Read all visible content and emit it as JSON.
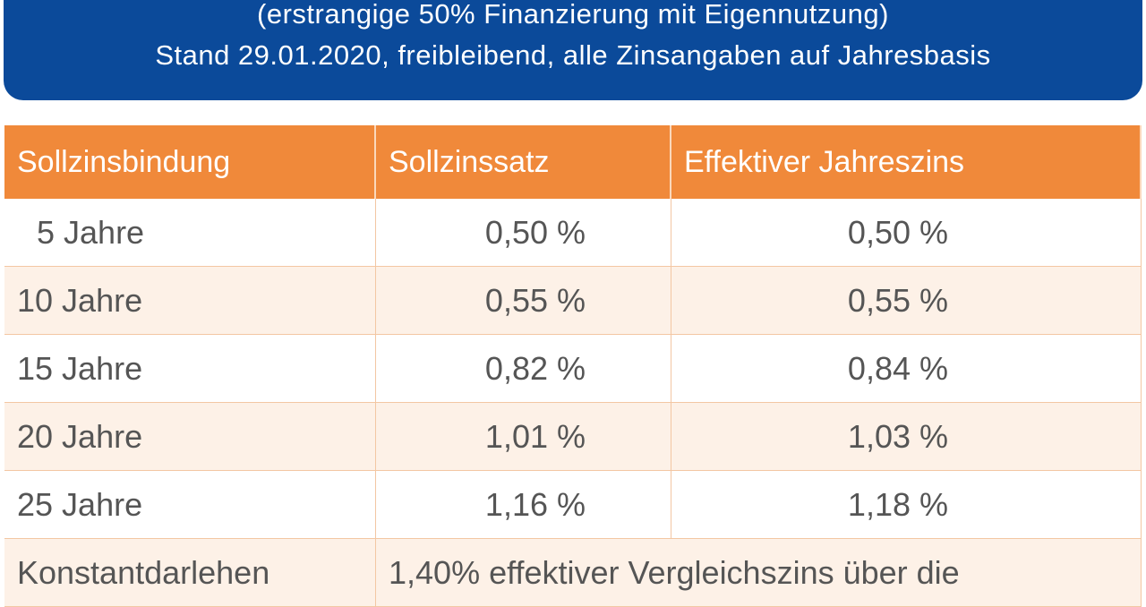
{
  "header": {
    "lines": [
      "(erstrangige 50% Finanzierung mit Eigennutzung)",
      "Stand 29.01.2020, freibleibend, alle Zinsangaben auf Jahresbasis"
    ]
  },
  "table": {
    "columns": [
      "Sollzinsbindung",
      "Sollzinssatz",
      "Effektiver Jahreszins"
    ],
    "rows": [
      [
        "5 Jahre",
        "0,50 %",
        "0,50 %"
      ],
      [
        "10 Jahre",
        "0,55 %",
        "0,55 %"
      ],
      [
        "15 Jahre",
        "0,82 %",
        "0,84 %"
      ],
      [
        "20 Jahre",
        "1,01 %",
        "1,03 %"
      ],
      [
        "25 Jahre",
        "1,16 %",
        "1,18 %"
      ]
    ],
    "footer_row": [
      "Konstantdarlehen",
      "1,40% effektiver Vergleichszins über die"
    ]
  }
}
